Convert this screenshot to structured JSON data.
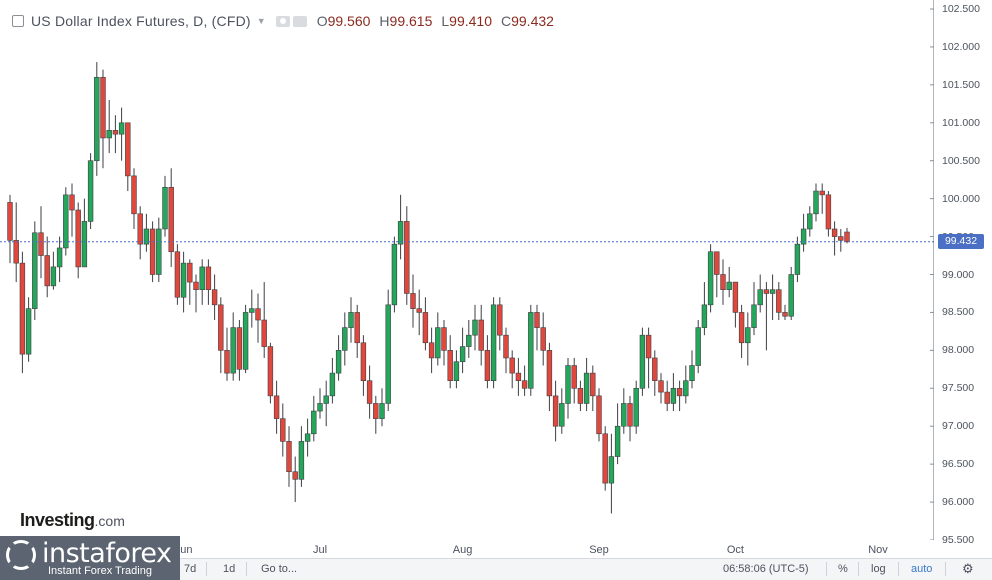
{
  "legend": {
    "title": "US Dollar Index Futures, D, (CFD)",
    "open_label": "O",
    "open": "99.560",
    "high_label": "H",
    "high": "99.615",
    "low_label": "L",
    "low": "99.410",
    "close_label": "C",
    "close": "99.432"
  },
  "last_price_label": "99.432",
  "watermark": {
    "brand": "instaforex",
    "tagline": "Instant Forex Trading"
  },
  "investing_logo": {
    "name": "Investing",
    "suffix": ".com"
  },
  "bottom_bar": {
    "range_7d": "7d",
    "range_1d": "1d",
    "goto": "Go to...",
    "clock": "06:58:06 (UTC-5)",
    "percent": "%",
    "log": "log",
    "auto": "auto",
    "settings_icon": "gear-icon"
  },
  "colors": {
    "up": "#26a65b",
    "down": "#e0483d",
    "price_line": "#4a6fc4"
  },
  "chart_data": {
    "type": "candlestick",
    "title": "US Dollar Index Futures, D, (CFD)",
    "ylim": [
      95.5,
      102.5
    ],
    "y_ticks": [
      "95.500",
      "96.000",
      "96.500",
      "97.000",
      "97.500",
      "98.000",
      "98.500",
      "99.000",
      "99.500",
      "100.000",
      "100.500",
      "101.000",
      "101.500",
      "102.000",
      "102.500"
    ],
    "x_ticks": [
      {
        "label": "Jun",
        "index": 28
      },
      {
        "label": "Jul",
        "index": 50
      },
      {
        "label": "Aug",
        "index": 73
      },
      {
        "label": "Sep",
        "index": 95
      },
      {
        "label": "Oct",
        "index": 117
      },
      {
        "label": "Nov",
        "index": 140
      }
    ],
    "last_price": 99.432,
    "candles": [
      [
        99.95,
        99.45,
        100.05,
        99.15
      ],
      [
        99.45,
        99.15,
        99.95,
        98.9
      ],
      [
        99.15,
        97.95,
        99.3,
        97.7
      ],
      [
        97.95,
        98.55,
        98.7,
        97.85
      ],
      [
        98.55,
        99.55,
        99.7,
        98.4
      ],
      [
        99.55,
        99.25,
        99.9,
        98.95
      ],
      [
        99.25,
        98.85,
        99.5,
        98.7
      ],
      [
        98.85,
        99.1,
        99.3,
        98.8
      ],
      [
        99.1,
        99.35,
        99.5,
        98.9
      ],
      [
        99.35,
        100.05,
        100.15,
        99.25
      ],
      [
        100.05,
        99.85,
        100.2,
        99.5
      ],
      [
        99.85,
        99.1,
        99.95,
        98.95
      ],
      [
        99.1,
        99.7,
        100.0,
        99.4
      ],
      [
        99.7,
        100.5,
        100.6,
        99.6
      ],
      [
        100.5,
        101.6,
        101.8,
        100.3
      ],
      [
        101.6,
        100.8,
        101.7,
        100.4
      ],
      [
        100.8,
        100.9,
        101.3,
        100.6
      ],
      [
        100.9,
        100.85,
        101.1,
        100.6
      ],
      [
        100.85,
        101.0,
        101.2,
        100.5
      ],
      [
        101.0,
        100.3,
        101.0,
        100.1
      ],
      [
        100.3,
        99.8,
        100.4,
        99.6
      ],
      [
        99.8,
        99.4,
        99.9,
        99.2
      ],
      [
        99.4,
        99.6,
        99.8,
        99.3
      ],
      [
        99.6,
        99.0,
        99.7,
        98.9
      ],
      [
        99.0,
        99.6,
        99.75,
        98.9
      ],
      [
        99.6,
        100.15,
        100.3,
        99.5
      ],
      [
        100.15,
        99.3,
        100.4,
        99.1
      ],
      [
        99.3,
        98.7,
        99.4,
        98.6
      ],
      [
        98.7,
        99.15,
        99.3,
        98.5
      ],
      [
        99.15,
        98.9,
        99.2,
        98.6
      ],
      [
        98.9,
        98.8,
        99.0,
        98.5
      ],
      [
        98.8,
        99.1,
        99.2,
        98.6
      ],
      [
        99.1,
        98.8,
        99.2,
        98.6
      ],
      [
        98.8,
        98.6,
        99.0,
        98.4
      ],
      [
        98.6,
        98.0,
        98.7,
        97.7
      ],
      [
        98.0,
        97.7,
        98.3,
        97.6
      ],
      [
        97.7,
        98.3,
        98.5,
        97.6
      ],
      [
        98.3,
        97.75,
        98.4,
        97.6
      ],
      [
        97.75,
        98.5,
        98.6,
        97.7
      ],
      [
        98.5,
        98.55,
        98.8,
        98.3
      ],
      [
        98.55,
        98.4,
        98.75,
        98.1
      ],
      [
        98.4,
        98.05,
        98.9,
        97.9
      ],
      [
        98.05,
        97.4,
        98.1,
        97.3
      ],
      [
        97.4,
        97.1,
        97.6,
        96.9
      ],
      [
        97.1,
        96.8,
        97.3,
        96.6
      ],
      [
        96.8,
        96.4,
        97.0,
        96.2
      ],
      [
        96.4,
        96.3,
        96.6,
        96.0
      ],
      [
        96.3,
        96.8,
        97.0,
        96.2
      ],
      [
        96.8,
        96.9,
        97.1,
        96.6
      ],
      [
        96.9,
        97.2,
        97.4,
        96.8
      ],
      [
        97.2,
        97.3,
        97.5,
        97.1
      ],
      [
        97.3,
        97.4,
        97.6,
        97.0
      ],
      [
        97.4,
        97.7,
        97.9,
        97.3
      ],
      [
        97.7,
        98.0,
        98.2,
        97.6
      ],
      [
        98.0,
        98.3,
        98.5,
        97.8
      ],
      [
        98.3,
        98.5,
        98.7,
        98.1
      ],
      [
        98.5,
        98.1,
        98.6,
        97.9
      ],
      [
        98.1,
        97.6,
        98.2,
        97.4
      ],
      [
        97.6,
        97.3,
        97.8,
        97.1
      ],
      [
        97.3,
        97.1,
        97.4,
        96.9
      ],
      [
        97.1,
        97.3,
        97.5,
        97.0
      ],
      [
        97.3,
        98.6,
        98.8,
        97.2
      ],
      [
        98.6,
        99.4,
        99.5,
        98.5
      ],
      [
        99.4,
        99.7,
        100.05,
        99.2
      ],
      [
        99.7,
        98.75,
        99.9,
        98.6
      ],
      [
        98.75,
        98.55,
        99.0,
        98.3
      ],
      [
        98.55,
        98.5,
        98.8,
        98.2
      ],
      [
        98.5,
        98.1,
        98.7,
        98.0
      ],
      [
        98.1,
        97.9,
        98.3,
        97.7
      ],
      [
        97.9,
        98.3,
        98.5,
        97.8
      ],
      [
        98.3,
        98.0,
        98.4,
        97.8
      ],
      [
        98.0,
        97.6,
        98.2,
        97.5
      ],
      [
        97.6,
        97.85,
        98.0,
        97.5
      ],
      [
        97.85,
        98.05,
        98.3,
        97.7
      ],
      [
        98.05,
        98.2,
        98.4,
        97.9
      ],
      [
        98.2,
        98.4,
        98.6,
        98.0
      ],
      [
        98.4,
        98.0,
        98.6,
        97.8
      ],
      [
        98.0,
        97.6,
        98.2,
        97.5
      ],
      [
        97.6,
        98.6,
        98.7,
        97.5
      ],
      [
        98.6,
        98.2,
        98.7,
        98.0
      ],
      [
        98.2,
        97.9,
        98.3,
        97.7
      ],
      [
        97.9,
        97.7,
        98.0,
        97.5
      ],
      [
        97.7,
        97.6,
        97.9,
        97.4
      ],
      [
        97.6,
        97.5,
        97.8,
        97.4
      ],
      [
        97.5,
        98.5,
        98.6,
        97.4
      ],
      [
        98.5,
        98.3,
        98.6,
        98.0
      ],
      [
        98.3,
        98.0,
        98.5,
        97.8
      ],
      [
        98.0,
        97.4,
        98.1,
        97.2
      ],
      [
        97.4,
        97.0,
        97.6,
        96.8
      ],
      [
        97.0,
        97.3,
        97.5,
        96.9
      ],
      [
        97.3,
        97.8,
        97.9,
        97.1
      ],
      [
        97.8,
        97.5,
        97.9,
        97.3
      ],
      [
        97.5,
        97.3,
        97.6,
        97.2
      ],
      [
        97.3,
        97.7,
        97.9,
        97.2
      ],
      [
        97.7,
        97.4,
        97.8,
        97.2
      ],
      [
        97.4,
        96.9,
        97.5,
        96.8
      ],
      [
        96.9,
        96.25,
        97.0,
        96.15
      ],
      [
        96.25,
        96.6,
        96.9,
        95.85
      ],
      [
        96.6,
        97.0,
        97.3,
        96.5
      ],
      [
        97.0,
        97.3,
        97.5,
        96.9
      ],
      [
        97.3,
        97.0,
        97.4,
        96.8
      ],
      [
        97.0,
        97.5,
        97.6,
        96.9
      ],
      [
        97.5,
        98.2,
        98.3,
        97.4
      ],
      [
        98.2,
        97.9,
        98.3,
        97.5
      ],
      [
        97.9,
        97.6,
        98.0,
        97.4
      ],
      [
        97.6,
        97.45,
        97.7,
        97.3
      ],
      [
        97.45,
        97.3,
        97.6,
        97.2
      ],
      [
        97.3,
        97.5,
        97.7,
        97.2
      ],
      [
        97.5,
        97.4,
        97.6,
        97.2
      ],
      [
        97.4,
        97.6,
        97.8,
        97.3
      ],
      [
        97.6,
        97.8,
        98.0,
        97.5
      ],
      [
        97.8,
        98.3,
        98.4,
        97.7
      ],
      [
        98.3,
        98.6,
        98.9,
        98.2
      ],
      [
        98.6,
        99.3,
        99.4,
        98.5
      ],
      [
        99.3,
        99.0,
        99.3,
        98.7
      ],
      [
        99.0,
        98.8,
        99.2,
        98.6
      ],
      [
        98.8,
        98.9,
        99.1,
        98.7
      ],
      [
        98.9,
        98.5,
        98.9,
        98.3
      ],
      [
        98.5,
        98.1,
        98.6,
        97.9
      ],
      [
        98.1,
        98.3,
        98.5,
        97.8
      ],
      [
        98.3,
        98.6,
        98.9,
        98.2
      ],
      [
        98.6,
        98.8,
        99.0,
        98.5
      ],
      [
        98.8,
        98.75,
        98.9,
        98.0
      ],
      [
        98.75,
        98.8,
        99.0,
        98.4
      ],
      [
        98.8,
        98.5,
        98.9,
        98.4
      ],
      [
        98.5,
        98.45,
        98.6,
        98.4
      ],
      [
        98.45,
        99.0,
        99.1,
        98.4
      ],
      [
        99.0,
        99.4,
        99.5,
        98.9
      ],
      [
        99.4,
        99.6,
        99.8,
        99.3
      ],
      [
        99.6,
        99.8,
        99.9,
        99.5
      ],
      [
        99.8,
        100.1,
        100.2,
        99.7
      ],
      [
        100.1,
        100.05,
        100.2,
        99.8
      ],
      [
        100.05,
        99.6,
        100.1,
        99.5
      ],
      [
        99.6,
        99.5,
        99.7,
        99.25
      ],
      [
        99.5,
        99.45,
        99.6,
        99.3
      ],
      [
        99.56,
        99.432,
        99.615,
        99.41
      ]
    ]
  }
}
